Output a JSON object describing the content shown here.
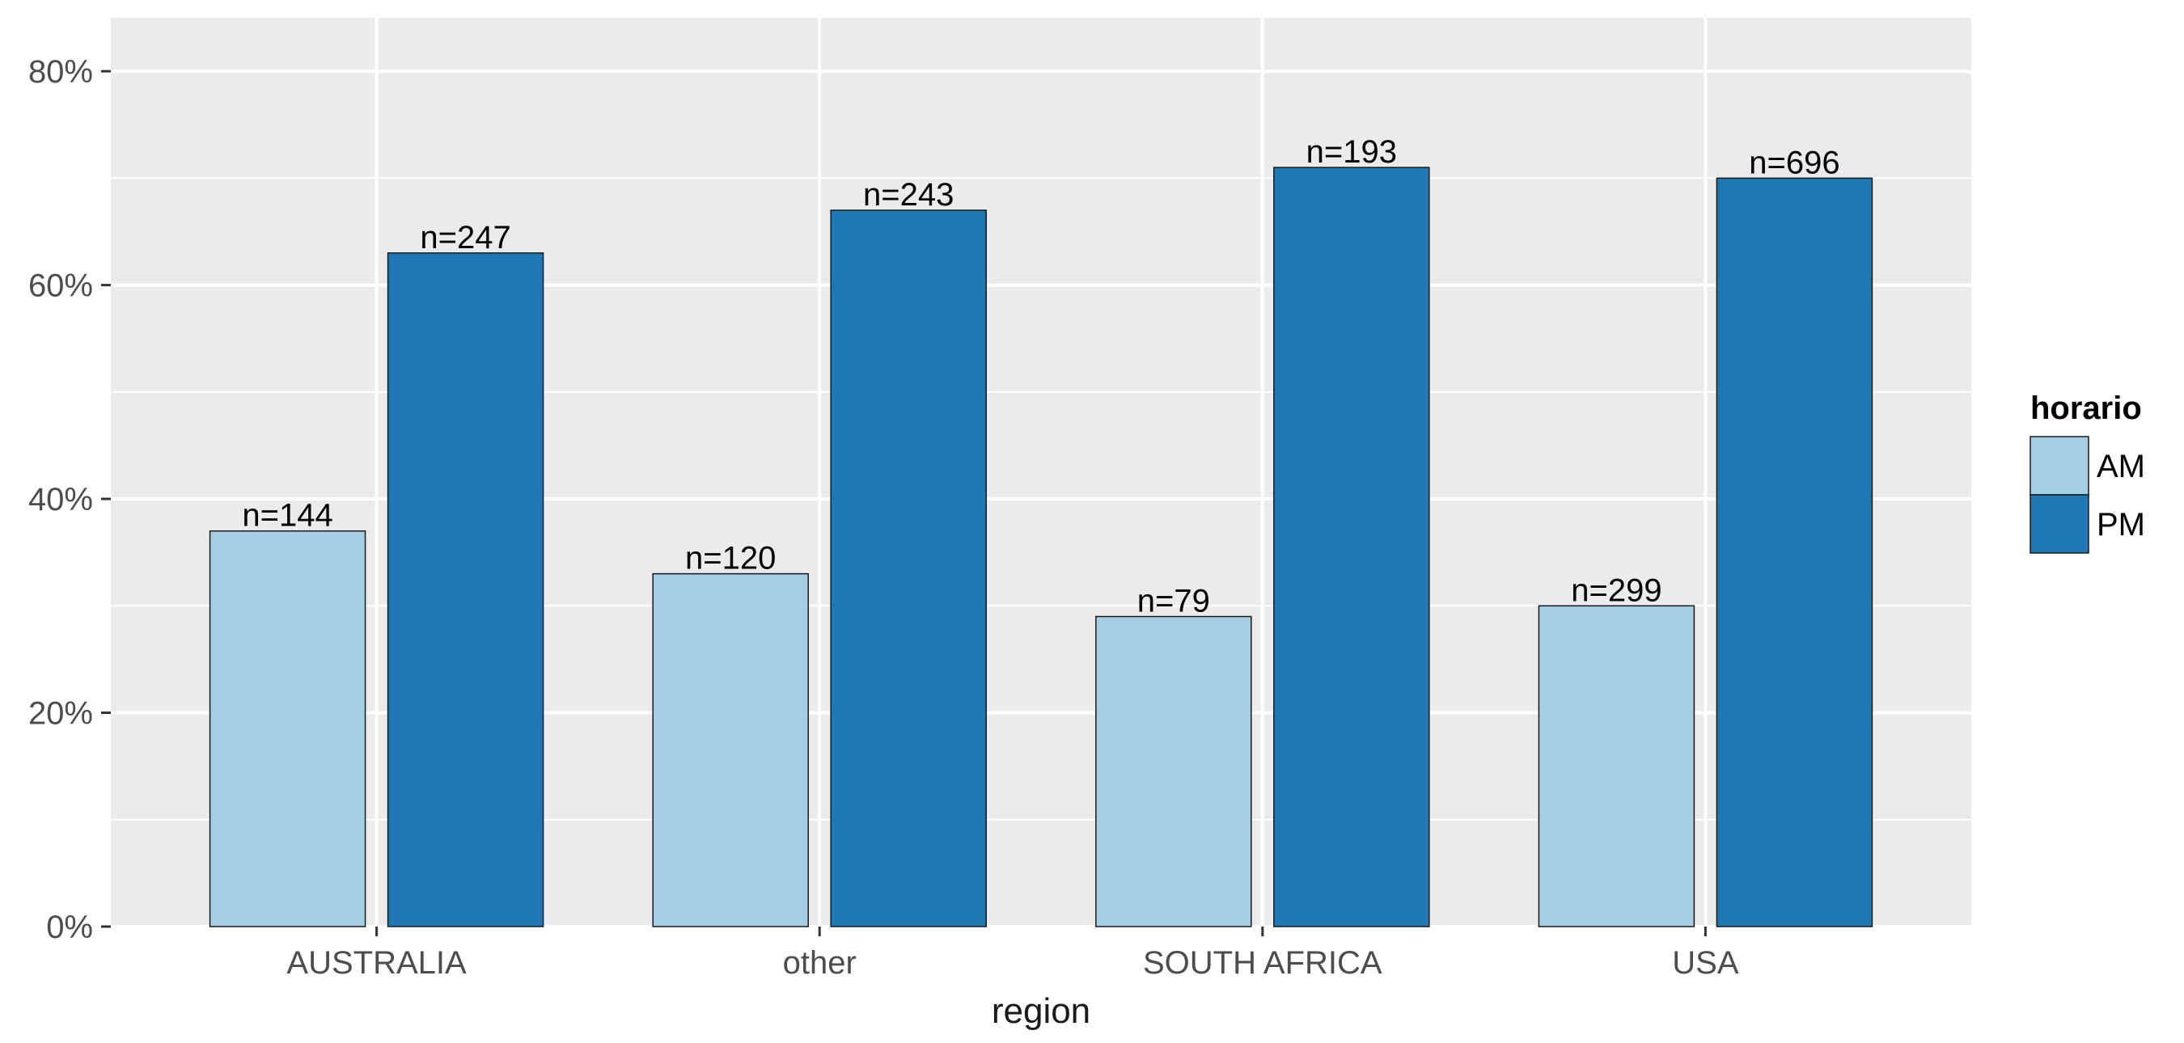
{
  "chart_data": {
    "type": "bar",
    "title": "",
    "xlabel": "region",
    "ylabel": "",
    "categories": [
      "AUSTRALIA",
      "other",
      "SOUTH AFRICA",
      "USA"
    ],
    "series": [
      {
        "name": "AM",
        "color": "#a6cee3",
        "values": [
          37,
          33,
          29,
          30
        ],
        "labels": [
          "n=144",
          "n=120",
          "n=79",
          "n=299"
        ]
      },
      {
        "name": "PM",
        "color": "#1f78b4",
        "values": [
          63,
          67,
          71,
          70
        ],
        "labels": [
          "n=247",
          "n=243",
          "n=193",
          "n=696"
        ]
      }
    ],
    "ylim": [
      0,
      85
    ],
    "yticks": [
      0,
      20,
      40,
      60,
      80
    ],
    "ytick_labels": [
      "0%",
      "20%",
      "40%",
      "60%",
      "80%"
    ],
    "legend": {
      "title": "horario",
      "placement": "right"
    },
    "grid": true,
    "colors": {
      "panel_background": "#ebebeb",
      "grid": "#ffffff",
      "bar_outline": "#1a1a1a"
    }
  }
}
